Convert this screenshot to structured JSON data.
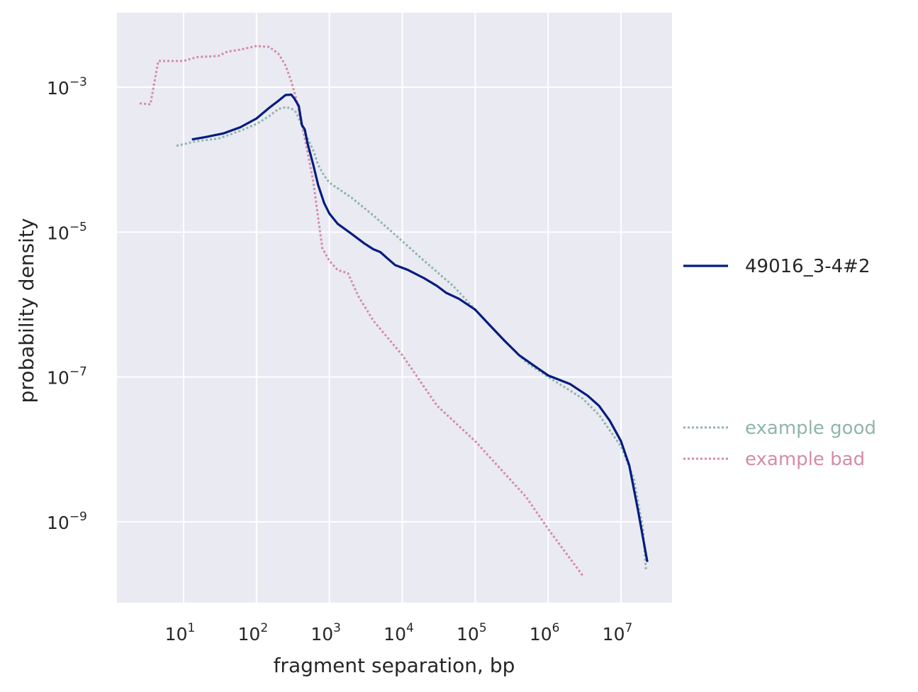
{
  "chart_data": {
    "type": "line",
    "xlabel": "fragment separation, bp",
    "ylabel": "probability density",
    "x_scale": "log",
    "y_scale": "log",
    "xlim": [
      1,
      50000000
    ],
    "ylim": [
      7e-11,
      0.01
    ],
    "x_ticks": [
      {
        "base": "10",
        "exp": "1",
        "value": 10
      },
      {
        "base": "10",
        "exp": "2",
        "value": 100
      },
      {
        "base": "10",
        "exp": "3",
        "value": 1000
      },
      {
        "base": "10",
        "exp": "4",
        "value": 10000
      },
      {
        "base": "10",
        "exp": "5",
        "value": 100000
      },
      {
        "base": "10",
        "exp": "6",
        "value": 1000000
      },
      {
        "base": "10",
        "exp": "7",
        "value": 10000000
      }
    ],
    "y_ticks": [
      {
        "base": "10",
        "exp": "−3",
        "value": 0.001
      },
      {
        "base": "10",
        "exp": "−5",
        "value": 1e-05
      },
      {
        "base": "10",
        "exp": "−7",
        "value": 1e-07
      },
      {
        "base": "10",
        "exp": "−9",
        "value": 1e-09
      }
    ],
    "grid": true,
    "legend": "right",
    "series": [
      {
        "name": "49016_3-4#2",
        "color": "#001c7f",
        "dash": "solid",
        "points": [
          [
            13,
            0.00019
          ],
          [
            20,
            0.000205
          ],
          [
            35,
            0.00023
          ],
          [
            60,
            0.00028
          ],
          [
            100,
            0.00037
          ],
          [
            150,
            0.00052
          ],
          [
            200,
            0.00065
          ],
          [
            250,
            0.00078
          ],
          [
            300,
            0.00079
          ],
          [
            330,
            0.0007
          ],
          [
            380,
            0.00055
          ],
          [
            420,
            0.0003
          ],
          [
            460,
            0.00026
          ],
          [
            500,
            0.00017
          ],
          [
            600,
            8.5e-05
          ],
          [
            700,
            4.5e-05
          ],
          [
            850,
            2.5e-05
          ],
          [
            1000,
            1.8e-05
          ],
          [
            1300,
            1.3e-05
          ],
          [
            2000,
            9.5e-06
          ],
          [
            3000,
            7e-06
          ],
          [
            4000,
            5.8e-06
          ],
          [
            5000,
            5.3e-06
          ],
          [
            6000,
            4.5e-06
          ],
          [
            8000,
            3.5e-06
          ],
          [
            12000,
            3e-06
          ],
          [
            20000,
            2.3e-06
          ],
          [
            30000,
            1.8e-06
          ],
          [
            40000,
            1.45e-06
          ],
          [
            60000,
            1.2e-06
          ],
          [
            100000,
            8.5e-07
          ],
          [
            150000,
            5.5e-07
          ],
          [
            250000,
            3.2e-07
          ],
          [
            400000,
            2e-07
          ],
          [
            600000,
            1.5e-07
          ],
          [
            1000000,
            1.05e-07
          ],
          [
            2000000,
            8e-08
          ],
          [
            3500000,
            5.5e-08
          ],
          [
            5000000,
            4e-08
          ],
          [
            7000000,
            2.5e-08
          ],
          [
            10000000,
            1.3e-08
          ],
          [
            13000000,
            6e-09
          ],
          [
            17000000,
            1.5e-09
          ],
          [
            23000000,
            2.8e-10
          ]
        ]
      },
      {
        "name": "example good",
        "color": "#8fb5ab",
        "dash": "dotted",
        "points": [
          [
            8,
            0.000155
          ],
          [
            15,
            0.00018
          ],
          [
            30,
            0.000195
          ],
          [
            60,
            0.00025
          ],
          [
            100,
            0.00031
          ],
          [
            150,
            0.0004
          ],
          [
            200,
            0.0005
          ],
          [
            250,
            0.00053
          ],
          [
            300,
            0.00051
          ],
          [
            350,
            0.00045
          ],
          [
            400,
            0.00033
          ],
          [
            500,
            0.0002
          ],
          [
            600,
            0.000135
          ],
          [
            700,
            8.5e-05
          ],
          [
            850,
            6e-05
          ],
          [
            1000,
            4.8e-05
          ],
          [
            2000,
            3e-05
          ],
          [
            4000,
            1.7e-05
          ],
          [
            10000,
            7.5e-06
          ],
          [
            20000,
            4e-06
          ],
          [
            50000,
            1.8e-06
          ],
          [
            100000,
            8.5e-07
          ],
          [
            200000,
            4e-07
          ],
          [
            500000,
            1.6e-07
          ],
          [
            1000000,
            1e-07
          ],
          [
            2000000,
            6.5e-08
          ],
          [
            3000000,
            5e-08
          ],
          [
            5000000,
            3e-08
          ],
          [
            10000000,
            1.1e-08
          ],
          [
            15000000,
            4e-09
          ],
          [
            20000000,
            8e-10
          ],
          [
            22000000,
            2.2e-10
          ]
        ]
      },
      {
        "name": "example bad",
        "color": "#d48ca7",
        "dash": "dotted",
        "points": [
          [
            2.5,
            0.0006
          ],
          [
            3.5,
            0.00058
          ],
          [
            4.5,
            0.0023
          ],
          [
            10,
            0.0023
          ],
          [
            15,
            0.0026
          ],
          [
            30,
            0.0027
          ],
          [
            40,
            0.0031
          ],
          [
            60,
            0.0033
          ],
          [
            100,
            0.0037
          ],
          [
            150,
            0.0036
          ],
          [
            200,
            0.0029
          ],
          [
            250,
            0.002
          ],
          [
            300,
            0.0012
          ],
          [
            350,
            0.0007
          ],
          [
            420,
            0.0003
          ],
          [
            500,
            0.00013
          ],
          [
            600,
            5e-05
          ],
          [
            700,
            1.6e-05
          ],
          [
            800,
            6e-06
          ],
          [
            1000,
            4e-06
          ],
          [
            1300,
            3e-06
          ],
          [
            1800,
            2.7e-06
          ],
          [
            2500,
            1.3e-06
          ],
          [
            4000,
            6e-07
          ],
          [
            10000,
            2e-07
          ],
          [
            30000,
            4e-08
          ],
          [
            100000,
            1.3e-08
          ],
          [
            500000,
            2.2e-09
          ],
          [
            1000000,
            8e-10
          ],
          [
            3000000,
            1.8e-10
          ]
        ]
      }
    ]
  }
}
